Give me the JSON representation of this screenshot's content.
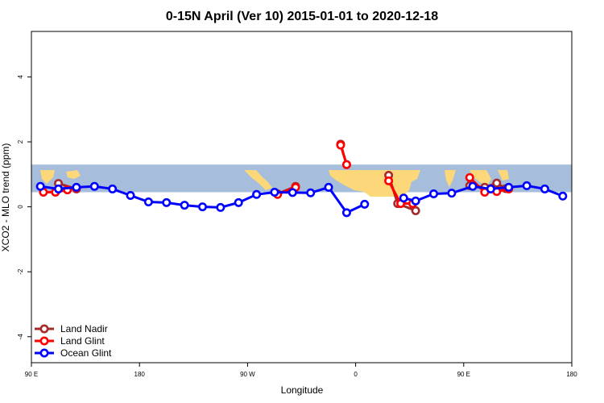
{
  "chart_data": {
    "type": "line",
    "title": "0-15N April (Ver 10)   2015-01-01 to 2020-12-18",
    "xlabel": "Longitude",
    "ylabel": "XCO2 - MLO trend (ppm)",
    "xlim": [
      -90,
      270
    ],
    "ylim": [
      -4.8,
      5.4
    ],
    "x_ticks": [
      {
        "value": -90,
        "label": "90 E"
      },
      {
        "value": -18,
        "label": "180"
      },
      {
        "value": 54,
        "label": "90 W"
      },
      {
        "value": 126,
        "label": "0"
      },
      {
        "value": 198,
        "label": "90 E"
      },
      {
        "value": 270,
        "label": "180"
      }
    ],
    "y_ticks": [
      {
        "value": -4,
        "label": "-4"
      },
      {
        "value": -2,
        "label": "-2"
      },
      {
        "value": 0,
        "label": "0"
      },
      {
        "value": 2,
        "label": "2"
      },
      {
        "value": 4,
        "label": "4"
      }
    ],
    "grid": false,
    "legend_position": "bottom-left",
    "map_band": {
      "y_low": 0.45,
      "y_high": 1.3,
      "ocean_color": "#a6bddb",
      "land_color": "#fdd87a"
    },
    "series": [
      {
        "name": "Land Nadir",
        "color": "#a52a2a",
        "segments": [
          [
            [
              -72,
              0.72
            ],
            [
              -60,
              0.55
            ]
          ],
          [
            [
              74,
              0.4
            ],
            [
              86,
              0.63
            ]
          ],
          [
            [
              116,
              1.93
            ],
            [
              120,
              1.3
            ]
          ],
          [
            [
              148,
              0.97
            ],
            [
              154,
              0.1
            ],
            [
              166,
              -0.12
            ]
          ],
          [
            [
              202,
              0.65
            ],
            [
              212,
              0.6
            ],
            [
              220,
              0.73
            ],
            [
              226,
              0.56
            ]
          ]
        ]
      },
      {
        "name": "Land Glint",
        "color": "#ff0000",
        "segments": [
          [
            [
              -82,
              0.45
            ],
            [
              -74,
              0.45
            ],
            [
              -66,
              0.52
            ],
            [
              -60,
              0.58
            ]
          ],
          [
            [
              74,
              0.38
            ],
            [
              86,
              0.6
            ]
          ],
          [
            [
              116,
              1.9
            ],
            [
              120,
              1.3
            ]
          ],
          [
            [
              148,
              0.8
            ],
            [
              156,
              0.1
            ],
            [
              164,
              0.1
            ]
          ],
          [
            [
              202,
              0.9
            ],
            [
              212,
              0.45
            ],
            [
              220,
              0.47
            ],
            [
              228,
              0.55
            ]
          ]
        ]
      },
      {
        "name": "Ocean Glint",
        "color": "#0000ff",
        "segments": [
          [
            [
              -84,
              0.63
            ],
            [
              -72,
              0.55
            ],
            [
              -60,
              0.6
            ],
            [
              -48,
              0.63
            ],
            [
              -36,
              0.55
            ],
            [
              -24,
              0.35
            ],
            [
              -12,
              0.15
            ],
            [
              0,
              0.13
            ],
            [
              12,
              0.05
            ],
            [
              24,
              0.0
            ],
            [
              36,
              -0.02
            ],
            [
              48,
              0.13
            ],
            [
              60,
              0.38
            ],
            [
              72,
              0.45
            ],
            [
              84,
              0.44
            ],
            [
              96,
              0.43
            ],
            [
              108,
              0.6
            ],
            [
              120,
              -0.18
            ],
            [
              132,
              0.08
            ]
          ],
          [
            [
              158,
              0.27
            ],
            [
              166,
              0.18
            ],
            [
              178,
              0.4
            ],
            [
              190,
              0.42
            ],
            [
              204,
              0.63
            ],
            [
              216,
              0.55
            ],
            [
              228,
              0.6
            ],
            [
              240,
              0.65
            ],
            [
              252,
              0.55
            ],
            [
              264,
              0.33
            ]
          ]
        ]
      }
    ]
  }
}
